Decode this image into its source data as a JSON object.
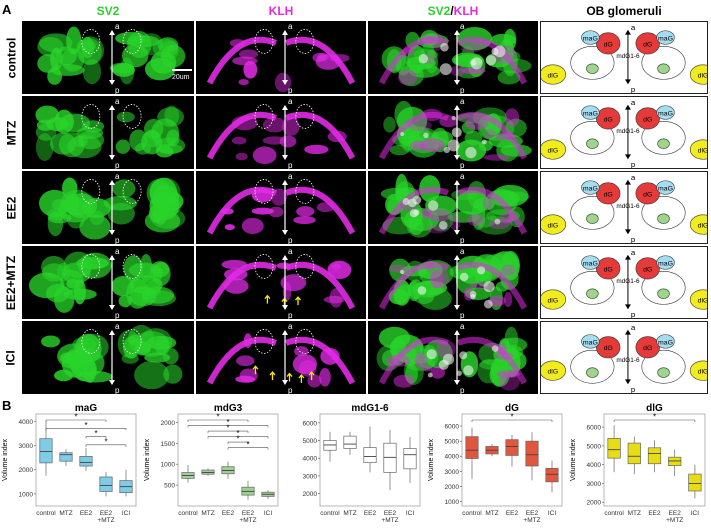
{
  "panel_a_letter": "A",
  "panel_b_letter": "B",
  "columns": {
    "sv2": "SV2",
    "klh": "KLH",
    "merge_sv2": "SV2",
    "merge_slash": "/",
    "merge_klh": "KLH",
    "schematic": "OB glomeruli"
  },
  "rows": [
    {
      "label": "control"
    },
    {
      "label": "MTZ"
    },
    {
      "label": "EE2"
    },
    {
      "label": "EE2+MTZ"
    },
    {
      "label": "ICI"
    }
  ],
  "scale_bar": "20um",
  "axis_anterior": "a",
  "axis_posterior": "p",
  "glomeruli_labels": {
    "maG": "maG",
    "dG": "dG",
    "mdG": "mdG1-6",
    "dlG": "dlG"
  },
  "colors": {
    "sv2": "#29d42a",
    "klh": "#e22ae6",
    "maG": "#a6dcf0",
    "dG": "#e53a3a",
    "mdG_green": "#9ed58a",
    "dlG": "#f2ec1e",
    "box_maG": "#7fcce6",
    "box_mdG3": "#9fcf92",
    "box_mdG16": "#ffffff",
    "box_dG": "#e0563f",
    "box_dlG": "#e8dd15"
  },
  "chart_data": [
    {
      "type": "box",
      "title": "maG",
      "ylabel": "Volume index",
      "categories": [
        "control",
        "MTZ",
        "EE2",
        "EE2\n+MTZ",
        "ICI"
      ],
      "ylim": [
        500,
        4300
      ],
      "yticks": [
        1000,
        2000,
        3000,
        4000
      ],
      "boxes": [
        {
          "q1": 2280,
          "median": 2750,
          "q3": 3280,
          "whislo": 1750,
          "whishi": 4000
        },
        {
          "q1": 2350,
          "median": 2620,
          "q3": 2700,
          "whislo": 2150,
          "whishi": 2850
        },
        {
          "q1": 2150,
          "median": 2300,
          "q3": 2550,
          "whislo": 1950,
          "whishi": 2900
        },
        {
          "q1": 1100,
          "median": 1350,
          "q3": 1700,
          "whislo": 900,
          "whishi": 1900
        },
        {
          "q1": 1050,
          "median": 1300,
          "q3": 1550,
          "whislo": 900,
          "whishi": 2000
        }
      ],
      "significance": [
        {
          "from": 0,
          "to": 3,
          "label": "*"
        },
        {
          "from": 0,
          "to": 4,
          "label": "*"
        },
        {
          "from": 2,
          "to": 3,
          "label": "*"
        },
        {
          "from": 2,
          "to": 4,
          "label": "*"
        }
      ]
    },
    {
      "type": "box",
      "title": "mdG3",
      "ylabel": "Volume index",
      "categories": [
        "control",
        "MTZ",
        "EE2",
        "EE2\n+MTZ",
        "ICI"
      ],
      "ylim": [
        0,
        2200
      ],
      "yticks": [
        500,
        1000,
        1500,
        2000
      ],
      "boxes": [
        {
          "q1": 660,
          "median": 730,
          "q3": 800,
          "whislo": 560,
          "whishi": 980
        },
        {
          "q1": 760,
          "median": 800,
          "q3": 860,
          "whislo": 720,
          "whishi": 900
        },
        {
          "q1": 770,
          "median": 850,
          "q3": 940,
          "whislo": 650,
          "whishi": 1060
        },
        {
          "q1": 260,
          "median": 350,
          "q3": 450,
          "whislo": 150,
          "whishi": 600
        },
        {
          "q1": 230,
          "median": 280,
          "q3": 330,
          "whislo": 170,
          "whishi": 380
        }
      ],
      "significance": [
        {
          "from": 0,
          "to": 3,
          "label": "*"
        },
        {
          "from": 0,
          "to": 4,
          "label": "*"
        },
        {
          "from": 1,
          "to": 3,
          "label": "*"
        },
        {
          "from": 1,
          "to": 4,
          "label": "*"
        },
        {
          "from": 2,
          "to": 3,
          "label": "*"
        },
        {
          "from": 2,
          "to": 4,
          "label": "*"
        }
      ]
    },
    {
      "type": "box",
      "title": "mdG1-6",
      "ylabel": "",
      "categories": [
        "control",
        "MTZ",
        "EE2",
        "EE2\n+MTZ",
        "ICI"
      ],
      "ylim": [
        1300,
        6500
      ],
      "yticks": [
        2000,
        3000,
        4000,
        5000,
        6000
      ],
      "boxes": [
        {
          "q1": 4450,
          "median": 4750,
          "q3": 5000,
          "whislo": 3800,
          "whishi": 5500
        },
        {
          "q1": 4550,
          "median": 4800,
          "q3": 5250,
          "whislo": 4200,
          "whishi": 5500
        },
        {
          "q1": 3750,
          "median": 4100,
          "q3": 4600,
          "whislo": 3200,
          "whishi": 5800
        },
        {
          "q1": 3200,
          "median": 4050,
          "q3": 4850,
          "whislo": 2200,
          "whishi": 5600
        },
        {
          "q1": 3400,
          "median": 4200,
          "q3": 4550,
          "whislo": 2600,
          "whishi": 5200
        }
      ],
      "significance": []
    },
    {
      "type": "box",
      "title": "dG",
      "ylabel": "Volume index",
      "categories": [
        "control",
        "MTZ",
        "EE2",
        "EE2\n+MTZ",
        "ICI"
      ],
      "ylim": [
        700,
        6800
      ],
      "yticks": [
        1000,
        2000,
        3000,
        4000,
        5000,
        6000
      ],
      "boxes": [
        {
          "q1": 3850,
          "median": 4400,
          "q3": 5300,
          "whislo": 2500,
          "whishi": 5900
        },
        {
          "q1": 4150,
          "median": 4400,
          "q3": 4650,
          "whislo": 4000,
          "whishi": 4800
        },
        {
          "q1": 4050,
          "median": 4650,
          "q3": 5100,
          "whislo": 3300,
          "whishi": 5400
        },
        {
          "q1": 3350,
          "median": 4100,
          "q3": 5000,
          "whislo": 2400,
          "whishi": 5600
        },
        {
          "q1": 2300,
          "median": 2800,
          "q3": 3200,
          "whislo": 1600,
          "whishi": 3700
        }
      ],
      "significance": [
        {
          "from": 0,
          "to": 4,
          "label": "*"
        }
      ]
    },
    {
      "type": "box",
      "title": "dlG",
      "ylabel": "Volume index",
      "categories": [
        "control",
        "MTZ",
        "EE2",
        "EE2\n+MTZ",
        "ICI"
      ],
      "ylim": [
        1800,
        6700
      ],
      "yticks": [
        2000,
        3000,
        4000,
        5000,
        6000
      ],
      "boxes": [
        {
          "q1": 4350,
          "median": 4800,
          "q3": 5400,
          "whislo": 3600,
          "whishi": 6100
        },
        {
          "q1": 4050,
          "median": 4450,
          "q3": 5150,
          "whislo": 3500,
          "whishi": 5500
        },
        {
          "q1": 4050,
          "median": 4600,
          "q3": 4900,
          "whislo": 3600,
          "whishi": 5300
        },
        {
          "q1": 3950,
          "median": 4200,
          "q3": 4400,
          "whislo": 3400,
          "whishi": 4800
        },
        {
          "q1": 2600,
          "median": 3000,
          "q3": 3500,
          "whislo": 2200,
          "whishi": 4000
        }
      ],
      "significance": [
        {
          "from": 0,
          "to": 4,
          "label": "*"
        }
      ]
    }
  ]
}
